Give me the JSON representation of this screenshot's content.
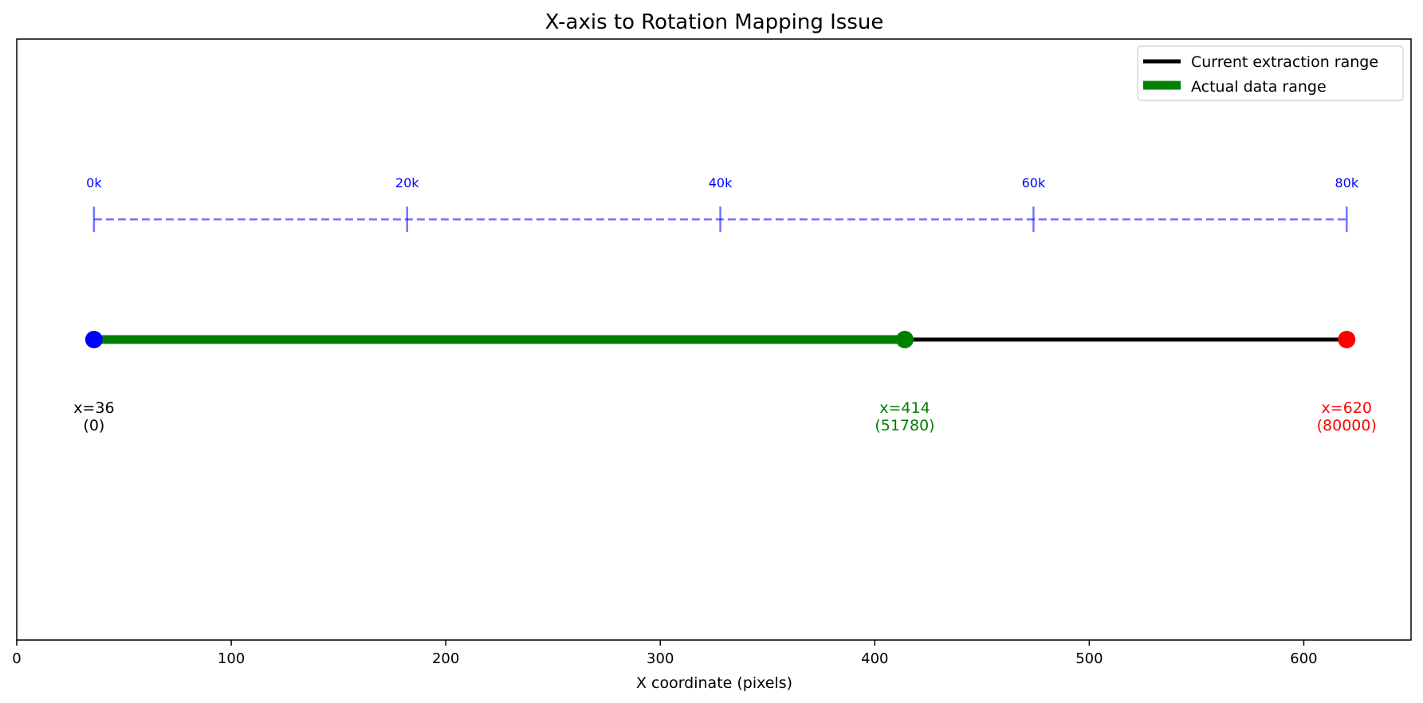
{
  "chart_data": {
    "type": "line",
    "title": "X-axis to Rotation Mapping Issue",
    "xlabel": "X coordinate (pixels)",
    "ylabel": "",
    "xlim": [
      0,
      650
    ],
    "ylim": [
      0,
      1
    ],
    "x_ticks": [
      0,
      100,
      200,
      300,
      400,
      500,
      600
    ],
    "grid": false,
    "legend_position": "top-right",
    "series": [
      {
        "name": "Current extraction range",
        "color": "#000000",
        "x": [
          36,
          620
        ],
        "y": [
          0.5,
          0.5
        ]
      },
      {
        "name": "Actual data range",
        "color": "#008000",
        "x": [
          36,
          414
        ],
        "y": [
          0.5,
          0.5
        ]
      }
    ],
    "points": [
      {
        "x": 36,
        "y": 0.5,
        "color": "#0000ff",
        "label": "x=36",
        "sublabel": "(0)",
        "label_color": "#000000"
      },
      {
        "x": 414,
        "y": 0.5,
        "color": "#008000",
        "label": "x=414",
        "sublabel": "(51780)",
        "label_color": "#008000"
      },
      {
        "x": 620,
        "y": 0.5,
        "color": "#ff0000",
        "label": "x=620",
        "sublabel": "(80000)",
        "label_color": "#ff0000"
      }
    ],
    "rotation_scale": {
      "color": "#0000ff",
      "y": 0.7,
      "x_start": 36,
      "x_end": 620,
      "ticks": [
        {
          "x": 36,
          "label": "0k"
        },
        {
          "x": 182,
          "label": "20k"
        },
        {
          "x": 328,
          "label": "40k"
        },
        {
          "x": 474,
          "label": "60k"
        },
        {
          "x": 620,
          "label": "80k"
        }
      ]
    }
  }
}
